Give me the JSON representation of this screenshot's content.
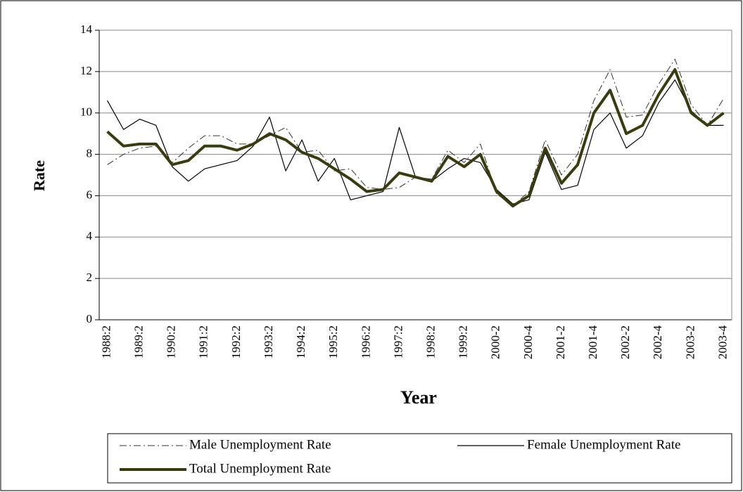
{
  "chart_data": {
    "type": "line",
    "x_label": "Year",
    "y_label": "Rate",
    "categories": [
      "1988:2",
      null,
      "1989:2",
      null,
      "1990:2",
      null,
      "1991:2",
      null,
      "1992:2",
      null,
      "1993:2",
      null,
      "1994:2",
      null,
      "1995:2",
      null,
      "1996:2",
      null,
      "1997:2",
      null,
      "1998:2",
      null,
      "1999:2",
      null,
      "2000-2",
      null,
      "2000-4",
      null,
      "2001-2",
      null,
      "2001-4",
      null,
      "2002-2",
      null,
      "2002-4",
      null,
      "2003-2",
      null,
      "2003-4"
    ],
    "series": [
      {
        "name": "Male Unemployment Rate",
        "color": "#333333",
        "style": "dashdot",
        "width": 1,
        "values": [
          7.5,
          8.0,
          8.3,
          8.4,
          7.6,
          8.3,
          8.9,
          8.9,
          8.5,
          8.5,
          8.9,
          9.3,
          8.1,
          8.2,
          7.2,
          7.3,
          6.4,
          6.3,
          6.4,
          6.9,
          6.8,
          8.2,
          7.6,
          8.5,
          6.1,
          5.5,
          6.2,
          8.7,
          7.0,
          8.0,
          10.6,
          12.1,
          9.8,
          9.9,
          11.4,
          12.6,
          10.4,
          9.4,
          10.7
        ]
      },
      {
        "name": "Female Unemployment Rate",
        "color": "#000000",
        "style": "solid",
        "width": 1.2,
        "values": [
          10.6,
          9.2,
          9.7,
          9.4,
          7.4,
          6.7,
          7.3,
          7.5,
          7.7,
          8.4,
          9.8,
          7.2,
          8.7,
          6.7,
          7.8,
          5.8,
          6.0,
          6.2,
          9.3,
          6.9,
          6.7,
          7.3,
          7.8,
          7.6,
          6.3,
          5.6,
          5.8,
          8.1,
          6.3,
          6.5,
          9.2,
          10.0,
          8.3,
          8.9,
          10.5,
          11.6,
          10.1,
          9.4,
          9.4
        ]
      },
      {
        "name": "Total Unemployment Rate",
        "color": "#3b3b10",
        "style": "solid",
        "width": 4,
        "values": [
          9.1,
          8.4,
          8.5,
          8.5,
          7.5,
          7.7,
          8.4,
          8.4,
          8.2,
          8.5,
          9.0,
          8.7,
          8.1,
          7.8,
          7.3,
          6.8,
          6.2,
          6.3,
          7.1,
          6.9,
          6.7,
          7.9,
          7.4,
          8.0,
          6.2,
          5.5,
          6.0,
          8.3,
          6.6,
          7.5,
          10.0,
          11.1,
          9.0,
          9.4,
          10.9,
          12.1,
          10.0,
          9.4,
          10.0
        ]
      }
    ],
    "ylim": [
      0,
      14
    ],
    "yticks": [
      0,
      2,
      4,
      6,
      8,
      10,
      12,
      14
    ],
    "grid": true
  }
}
